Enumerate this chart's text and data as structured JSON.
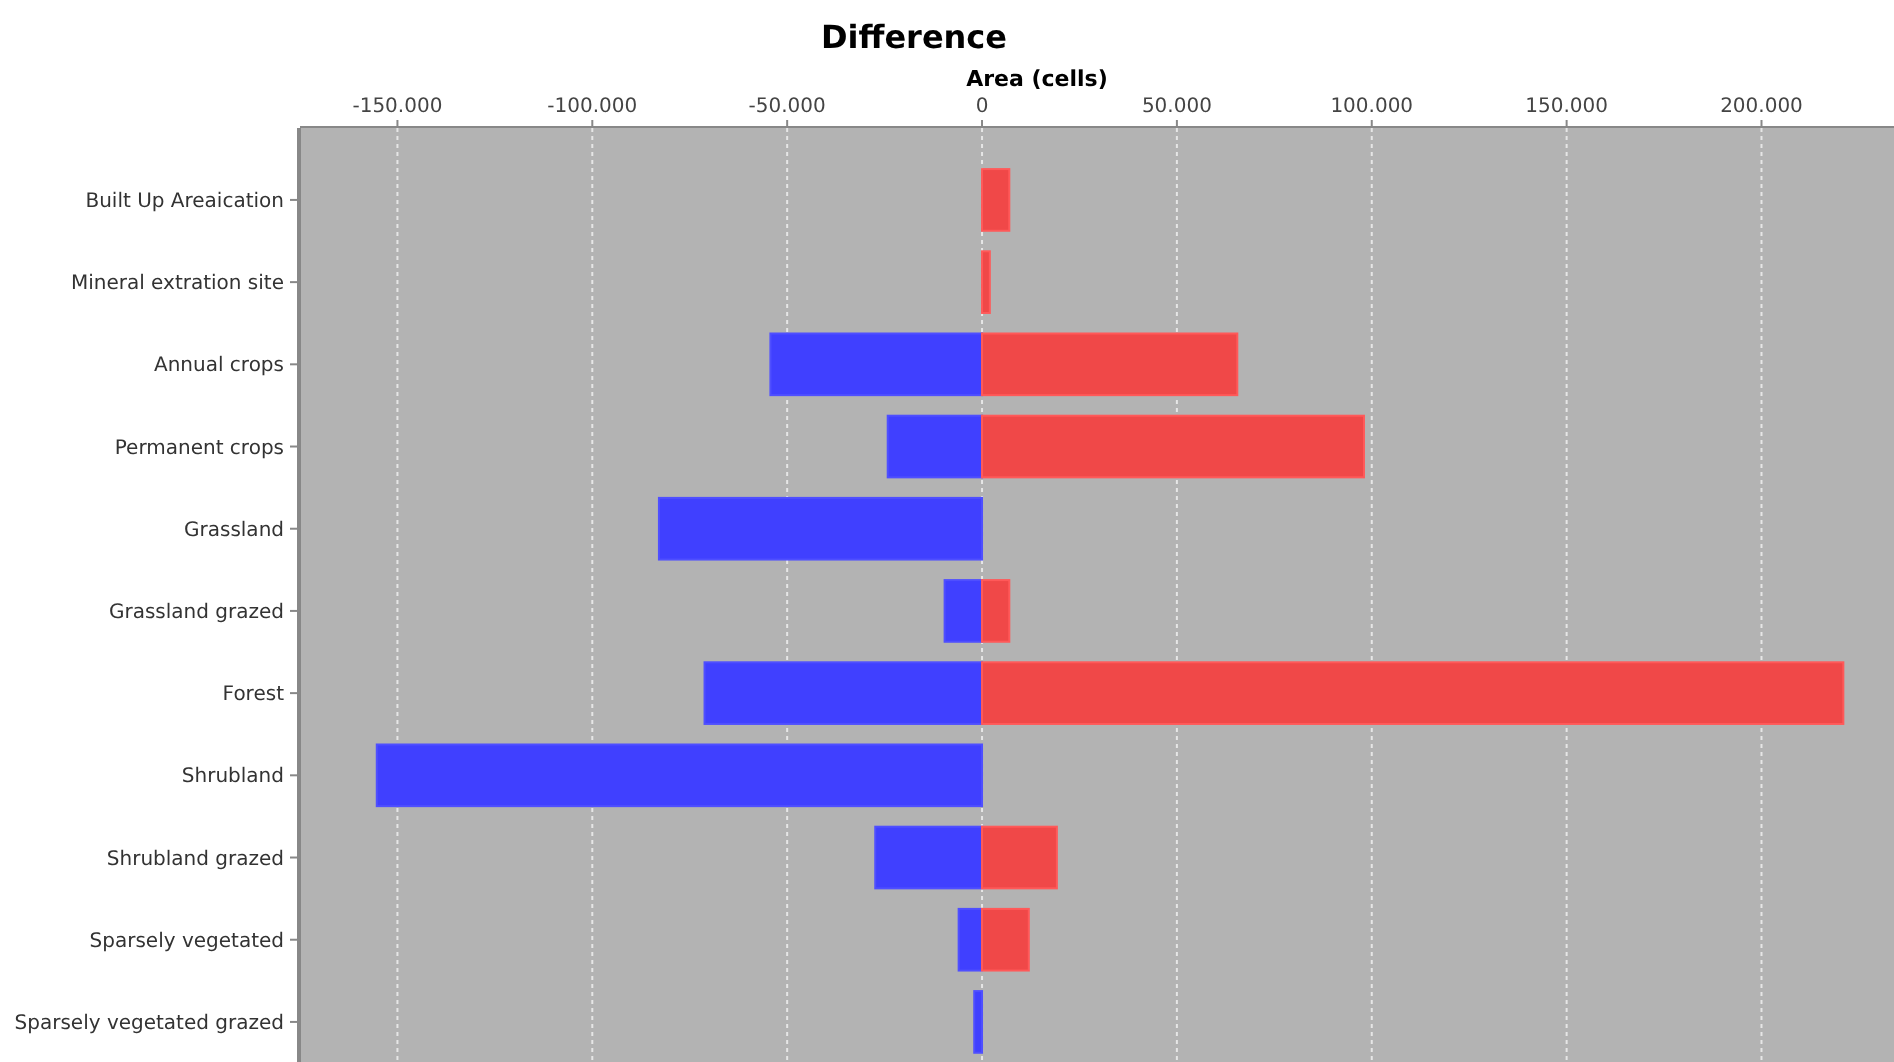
{
  "chart_data": {
    "type": "bar",
    "orientation": "horizontal",
    "stacked": true,
    "title": "Difference",
    "xlabel": "Area (cells)",
    "categories": [
      "Built Up Areaication",
      "Mineral extration site",
      "Annual crops",
      "Permanent crops",
      "Grassland",
      "Grassland grazed",
      "Forest",
      "Shrubland",
      "Shrubland grazed",
      "Sparsely vegetated",
      "Sparsely vegetated grazed"
    ],
    "series": [
      {
        "color": "#4040ff",
        "values": [
          0,
          0,
          -54300,
          -24200,
          -82900,
          -9600,
          -71200,
          -155300,
          -27400,
          -6000,
          -2000
        ]
      },
      {
        "color": "#f04848",
        "values": [
          7000,
          2000,
          65500,
          98000,
          0,
          7000,
          221000,
          0,
          19200,
          12000,
          0
        ]
      }
    ],
    "xlim": [
      -175000,
      234000
    ],
    "xticks": [
      {
        "value": -150000,
        "label": "-150.000"
      },
      {
        "value": -100000,
        "label": "-100.000"
      },
      {
        "value": -50000,
        "label": "-50.000"
      },
      0,
      {
        "value": 50000,
        "label": "50.000"
      },
      {
        "value": 100000,
        "label": "100.000"
      },
      {
        "value": 150000,
        "label": "150.000"
      },
      {
        "value": 200000,
        "label": "200.000"
      }
    ],
    "grid": "x"
  }
}
